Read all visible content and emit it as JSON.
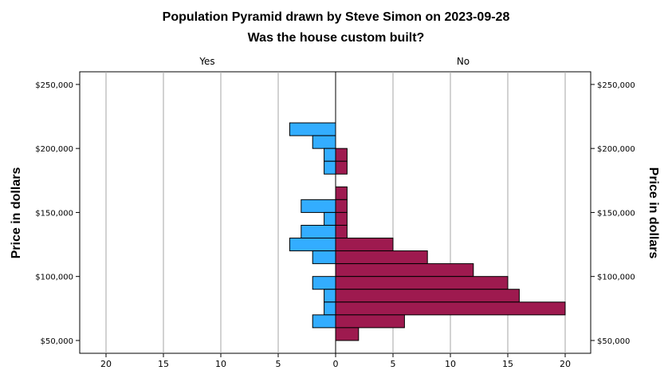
{
  "chart_data": {
    "type": "bar",
    "orientation": "horizontal",
    "title": "Population Pyramid drawn by Steve Simon on 2023-09-28",
    "subtitle": "Was the house custom built?",
    "ylabel": "Price in dollars",
    "xlim": [
      0,
      22
    ],
    "ylim": [
      40000,
      260000
    ],
    "bin_width": 10000,
    "grid": true,
    "x_ticks": [
      0,
      5,
      10,
      15,
      20
    ],
    "x_tick_labels": [
      "0",
      "5",
      "10",
      "15",
      "20"
    ],
    "y_ticks": [
      50000,
      100000,
      150000,
      200000,
      250000
    ],
    "y_tick_labels": [
      "$50,000",
      "$100,000",
      "$150,000",
      "$200,000",
      "$250,000"
    ],
    "series": [
      {
        "name": "Yes",
        "side": "left",
        "color": "#33adff",
        "bin_centers": [
          215000,
          205000,
          195000,
          185000,
          155000,
          145000,
          135000,
          125000,
          115000,
          95000,
          85000,
          75000,
          65000
        ],
        "values": [
          4,
          2,
          1,
          1,
          3,
          1,
          3,
          4,
          2,
          2,
          1,
          1,
          2
        ]
      },
      {
        "name": "No",
        "side": "right",
        "color": "#9e1a4f",
        "bin_centers": [
          195000,
          185000,
          165000,
          155000,
          145000,
          135000,
          125000,
          115000,
          105000,
          95000,
          85000,
          75000,
          65000,
          55000
        ],
        "values": [
          1,
          1,
          1,
          1,
          1,
          1,
          5,
          8,
          12,
          15,
          16,
          20,
          6,
          2
        ]
      }
    ]
  }
}
